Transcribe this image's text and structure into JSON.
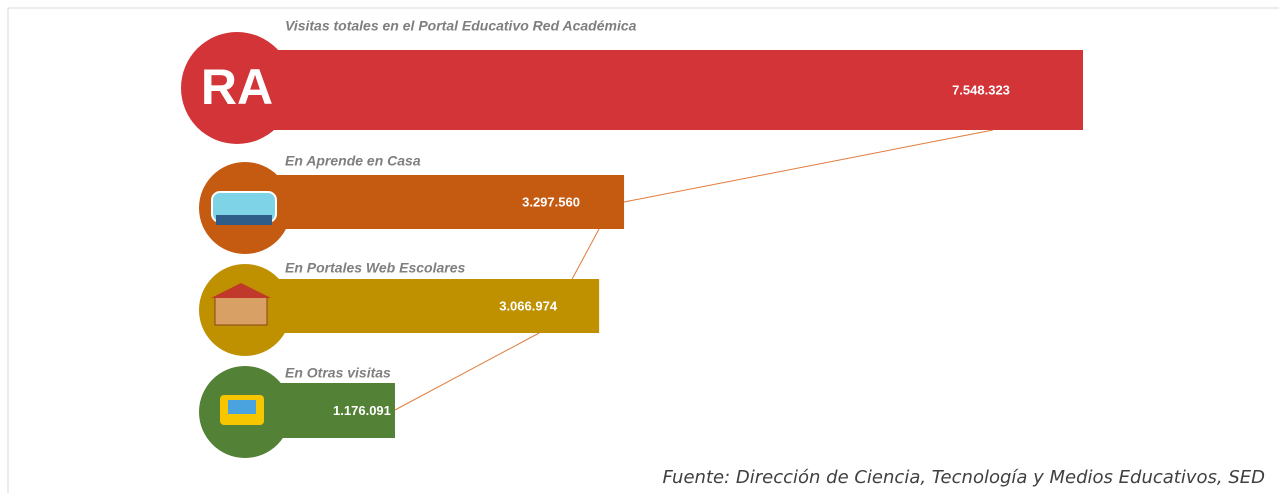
{
  "chart_data": {
    "type": "bar",
    "title": "Visitas totales en el Portal Educativo Red Académica",
    "logo_text": "RA",
    "categories": [
      "Visitas totales en el Portal Educativo Red Académica",
      "En Aprende en Casa",
      "En Portales Web Escolares",
      "En Otras visitas"
    ],
    "values": [
      7548323,
      3297560,
      3066974,
      1176091
    ],
    "value_labels": [
      "7.548.323",
      "3.297.560",
      "3.066.974",
      "1.176.091"
    ],
    "colors": [
      "#d33438",
      "#c55a11",
      "#bf9000",
      "#538135"
    ],
    "source": "Fuente: Dirección de Ciencia, Tecnología y Medios Educativos, SED"
  }
}
